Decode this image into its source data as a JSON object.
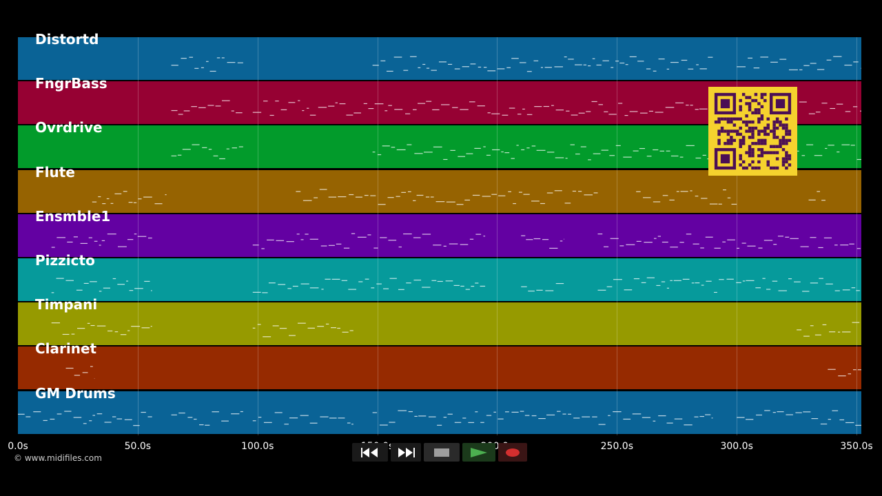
{
  "tracks": [
    {
      "label": "Distortd",
      "color": "#0a6396"
    },
    {
      "label": "FngrBass",
      "color": "#960133"
    },
    {
      "label": "Ovrdrive",
      "color": "#029b2b"
    },
    {
      "label": "Flute",
      "color": "#966301"
    },
    {
      "label": "Ensmble1",
      "color": "#6301a2"
    },
    {
      "label": "Pizzicto",
      "color": "#069a9b"
    },
    {
      "label": "Timpani",
      "color": "#969a00"
    },
    {
      "label": "Clarinet",
      "color": "#962a00"
    },
    {
      "label": "GM Drums",
      "color": "#0a6396"
    }
  ],
  "axis": {
    "ticks": [
      "0.0s",
      "50.0s",
      "100.0s",
      "150.0s",
      "200.0s",
      "250.0s",
      "300.0s",
      "350.0s"
    ],
    "tick_values": [
      0,
      50,
      100,
      150,
      200,
      250,
      300,
      350
    ],
    "range_seconds": [
      0,
      352
    ]
  },
  "copyright": "© www.midifiles.com",
  "transport": {
    "rewind_icon": "rewind-icon",
    "fast_forward_icon": "fast-forward-icon",
    "stop_icon": "stop-icon",
    "play_icon": "play-icon",
    "record_icon": "record-icon",
    "colors": {
      "play": "#4caf50",
      "record": "#d32f2f",
      "stop": "#9e9e9e"
    }
  },
  "qr_code": {
    "description_icon": "qr-code-icon",
    "fg": "#4b0f55",
    "bg": "#f5d22e"
  }
}
